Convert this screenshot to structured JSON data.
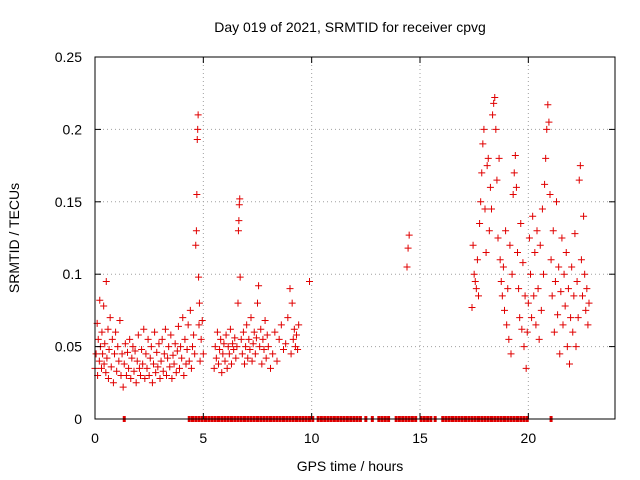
{
  "chart_data": {
    "type": "scatter",
    "title": "Day 019 of 2021, SRMTID for receiver cpvg",
    "xlabel": "GPS time / hours",
    "ylabel": "SRMTID / TECUs",
    "xlim": [
      0,
      24
    ],
    "ylim": [
      0,
      0.25
    ],
    "xticks": [
      0,
      5,
      10,
      15,
      20
    ],
    "xtick_labels": [
      "0",
      "5",
      "10",
      "15",
      "20"
    ],
    "yticks": [
      0,
      0.05,
      0.1,
      0.15,
      0.2,
      0.25
    ],
    "ytick_labels": [
      "0",
      "0.05",
      "0.1",
      "0.15",
      "0.2",
      "0.25"
    ],
    "grid": true,
    "marker": "plus",
    "color": "#e00000",
    "series": [
      {
        "name": "SRMTID",
        "points": [
          [
            0.0,
            0.035
          ],
          [
            0.05,
            0.045
          ],
          [
            0.1,
            0.066
          ],
          [
            0.12,
            0.03
          ],
          [
            0.15,
            0.055
          ],
          [
            0.2,
            0.04
          ],
          [
            0.22,
            0.082
          ],
          [
            0.25,
            0.05
          ],
          [
            0.3,
            0.035
          ],
          [
            0.32,
            0.06
          ],
          [
            0.35,
            0.045
          ],
          [
            0.4,
            0.078
          ],
          [
            0.42,
            0.038
          ],
          [
            0.45,
            0.052
          ],
          [
            0.5,
            0.032
          ],
          [
            0.52,
            0.095
          ],
          [
            0.55,
            0.042
          ],
          [
            0.6,
            0.062
          ],
          [
            0.62,
            0.028
          ],
          [
            0.65,
            0.048
          ],
          [
            0.7,
            0.07
          ],
          [
            0.75,
            0.036
          ],
          [
            0.8,
            0.055
          ],
          [
            0.85,
            0.025
          ],
          [
            0.9,
            0.045
          ],
          [
            0.95,
            0.06
          ],
          [
            1.0,
            0.033
          ],
          [
            1.05,
            0.05
          ],
          [
            1.1,
            0.04
          ],
          [
            1.15,
            0.068
          ],
          [
            1.2,
            0.03
          ],
          [
            1.25,
            0.045
          ],
          [
            1.3,
            0.022
          ],
          [
            1.35,
            0.038
          ],
          [
            1.4,
            0.052
          ],
          [
            1.45,
            0.03
          ],
          [
            1.5,
            0.046
          ],
          [
            1.55,
            0.035
          ],
          [
            1.6,
            0.055
          ],
          [
            1.65,
            0.028
          ],
          [
            1.7,
            0.042
          ],
          [
            1.75,
            0.05
          ],
          [
            1.8,
            0.033
          ],
          [
            1.85,
            0.047
          ],
          [
            1.9,
            0.025
          ],
          [
            1.95,
            0.04
          ],
          [
            2.0,
            0.058
          ],
          [
            2.05,
            0.035
          ],
          [
            2.1,
            0.03
          ],
          [
            2.15,
            0.048
          ],
          [
            2.2,
            0.038
          ],
          [
            2.25,
            0.062
          ],
          [
            2.3,
            0.028
          ],
          [
            2.35,
            0.045
          ],
          [
            2.4,
            0.035
          ],
          [
            2.45,
            0.055
          ],
          [
            2.5,
            0.03
          ],
          [
            2.55,
            0.042
          ],
          [
            2.6,
            0.05
          ],
          [
            2.65,
            0.025
          ],
          [
            2.7,
            0.038
          ],
          [
            2.75,
            0.06
          ],
          [
            2.8,
            0.032
          ],
          [
            2.85,
            0.046
          ],
          [
            2.9,
            0.036
          ],
          [
            2.95,
            0.052
          ],
          [
            3.0,
            0.028
          ],
          [
            3.05,
            0.04
          ],
          [
            3.1,
            0.055
          ],
          [
            3.15,
            0.033
          ],
          [
            3.2,
            0.045
          ],
          [
            3.25,
            0.062
          ],
          [
            3.3,
            0.03
          ],
          [
            3.35,
            0.042
          ],
          [
            3.4,
            0.05
          ],
          [
            3.45,
            0.036
          ],
          [
            3.5,
            0.058
          ],
          [
            3.55,
            0.028
          ],
          [
            3.6,
            0.044
          ],
          [
            3.65,
            0.038
          ],
          [
            3.7,
            0.052
          ],
          [
            3.75,
            0.032
          ],
          [
            3.8,
            0.047
          ],
          [
            3.85,
            0.064
          ],
          [
            3.9,
            0.035
          ],
          [
            3.95,
            0.05
          ],
          [
            4.0,
            0.042
          ],
          [
            4.05,
            0.07
          ],
          [
            4.1,
            0.03
          ],
          [
            4.15,
            0.055
          ],
          [
            4.2,
            0.038
          ],
          [
            4.25,
            0.048
          ],
          [
            4.3,
            0.065
          ],
          [
            4.35,
            0.04
          ],
          [
            4.4,
            0.075
          ],
          [
            4.45,
            0.035
          ],
          [
            4.5,
            0.05
          ],
          [
            4.55,
            0.058
          ],
          [
            4.6,
            0.045
          ],
          [
            4.65,
            0.12
          ],
          [
            4.68,
            0.13
          ],
          [
            4.7,
            0.155
          ],
          [
            4.72,
            0.193
          ],
          [
            4.74,
            0.2
          ],
          [
            4.76,
            0.21
          ],
          [
            4.78,
            0.098
          ],
          [
            4.8,
            0.065
          ],
          [
            4.82,
            0.08
          ],
          [
            4.85,
            0.04
          ],
          [
            4.9,
            0.055
          ],
          [
            4.95,
            0.068
          ],
          [
            5.0,
            0.045
          ],
          [
            5.5,
            0.035
          ],
          [
            5.55,
            0.05
          ],
          [
            5.6,
            0.042
          ],
          [
            5.65,
            0.06
          ],
          [
            5.7,
            0.038
          ],
          [
            5.75,
            0.048
          ],
          [
            5.8,
            0.055
          ],
          [
            5.85,
            0.032
          ],
          [
            5.9,
            0.045
          ],
          [
            5.95,
            0.052
          ],
          [
            6.0,
            0.04
          ],
          [
            6.05,
            0.058
          ],
          [
            6.1,
            0.035
          ],
          [
            6.15,
            0.05
          ],
          [
            6.2,
            0.045
          ],
          [
            6.25,
            0.062
          ],
          [
            6.3,
            0.038
          ],
          [
            6.35,
            0.052
          ],
          [
            6.4,
            0.048
          ],
          [
            6.45,
            0.056
          ],
          [
            6.5,
            0.042
          ],
          [
            6.55,
            0.05
          ],
          [
            6.6,
            0.08
          ],
          [
            6.62,
            0.13
          ],
          [
            6.64,
            0.137
          ],
          [
            6.66,
            0.148
          ],
          [
            6.68,
            0.152
          ],
          [
            6.7,
            0.098
          ],
          [
            6.75,
            0.055
          ],
          [
            6.8,
            0.045
          ],
          [
            6.85,
            0.06
          ],
          [
            6.9,
            0.038
          ],
          [
            6.95,
            0.05
          ],
          [
            7.0,
            0.065
          ],
          [
            7.05,
            0.042
          ],
          [
            7.1,
            0.055
          ],
          [
            7.15,
            0.048
          ],
          [
            7.2,
            0.07
          ],
          [
            7.25,
            0.04
          ],
          [
            7.3,
            0.052
          ],
          [
            7.35,
            0.06
          ],
          [
            7.4,
            0.045
          ],
          [
            7.45,
            0.056
          ],
          [
            7.5,
            0.08
          ],
          [
            7.55,
            0.092
          ],
          [
            7.6,
            0.05
          ],
          [
            7.65,
            0.062
          ],
          [
            7.7,
            0.038
          ],
          [
            7.75,
            0.055
          ],
          [
            7.8,
            0.048
          ],
          [
            7.85,
            0.068
          ],
          [
            7.9,
            0.042
          ],
          [
            7.95,
            0.058
          ],
          [
            8.0,
            0.05
          ],
          [
            8.1,
            0.035
          ],
          [
            8.2,
            0.045
          ],
          [
            8.3,
            0.06
          ],
          [
            8.4,
            0.04
          ],
          [
            8.5,
            0.055
          ],
          [
            8.6,
            0.065
          ],
          [
            8.7,
            0.048
          ],
          [
            8.8,
            0.052
          ],
          [
            8.9,
            0.07
          ],
          [
            9.0,
            0.09
          ],
          [
            9.05,
            0.045
          ],
          [
            9.1,
            0.08
          ],
          [
            9.15,
            0.055
          ],
          [
            9.2,
            0.062
          ],
          [
            9.25,
            0.05
          ],
          [
            9.3,
            0.058
          ],
          [
            9.35,
            0.048
          ],
          [
            9.4,
            0.065
          ],
          [
            9.9,
            0.095
          ],
          [
            14.4,
            0.105
          ],
          [
            14.45,
            0.118
          ],
          [
            14.5,
            0.127
          ],
          [
            17.4,
            0.077
          ],
          [
            17.45,
            0.12
          ],
          [
            17.5,
            0.1
          ],
          [
            17.55,
            0.095
          ],
          [
            17.6,
            0.09
          ],
          [
            17.65,
            0.11
          ],
          [
            17.7,
            0.085
          ],
          [
            17.75,
            0.135
          ],
          [
            17.8,
            0.15
          ],
          [
            17.85,
            0.17
          ],
          [
            17.9,
            0.19
          ],
          [
            17.95,
            0.2
          ],
          [
            18.0,
            0.145
          ],
          [
            18.05,
            0.115
          ],
          [
            18.1,
            0.175
          ],
          [
            18.15,
            0.18
          ],
          [
            18.2,
            0.13
          ],
          [
            18.25,
            0.16
          ],
          [
            18.3,
            0.145
          ],
          [
            18.35,
            0.21
          ],
          [
            18.4,
            0.218
          ],
          [
            18.45,
            0.222
          ],
          [
            18.5,
            0.2
          ],
          [
            18.55,
            0.165
          ],
          [
            18.6,
            0.125
          ],
          [
            18.65,
            0.18
          ],
          [
            18.7,
            0.11
          ],
          [
            18.75,
            0.095
          ],
          [
            18.8,
            0.085
          ],
          [
            18.85,
            0.105
          ],
          [
            18.9,
            0.075
          ],
          [
            18.95,
            0.13
          ],
          [
            19.0,
            0.065
          ],
          [
            19.05,
            0.09
          ],
          [
            19.1,
            0.055
          ],
          [
            19.15,
            0.12
          ],
          [
            19.2,
            0.045
          ],
          [
            19.25,
            0.1
          ],
          [
            19.3,
            0.155
          ],
          [
            19.35,
            0.17
          ],
          [
            19.4,
            0.182
          ],
          [
            19.45,
            0.16
          ],
          [
            19.5,
            0.115
          ],
          [
            19.55,
            0.09
          ],
          [
            19.6,
            0.07
          ],
          [
            19.65,
            0.135
          ],
          [
            19.7,
            0.062
          ],
          [
            19.75,
            0.108
          ],
          [
            19.8,
            0.05
          ],
          [
            19.85,
            0.085
          ],
          [
            19.9,
            0.035
          ],
          [
            19.95,
            0.06
          ],
          [
            20.0,
            0.08
          ],
          [
            20.05,
            0.125
          ],
          [
            20.1,
            0.1
          ],
          [
            20.15,
            0.07
          ],
          [
            20.2,
            0.14
          ],
          [
            20.25,
            0.085
          ],
          [
            20.3,
            0.115
          ],
          [
            20.35,
            0.065
          ],
          [
            20.4,
            0.13
          ],
          [
            20.45,
            0.09
          ],
          [
            20.5,
            0.055
          ],
          [
            20.55,
            0.12
          ],
          [
            20.6,
            0.075
          ],
          [
            20.65,
            0.145
          ],
          [
            20.7,
            0.1
          ],
          [
            20.75,
            0.162
          ],
          [
            20.8,
            0.18
          ],
          [
            20.85,
            0.2
          ],
          [
            20.9,
            0.217
          ],
          [
            20.95,
            0.205
          ],
          [
            21.0,
            0.155
          ],
          [
            21.05,
            0.11
          ],
          [
            21.1,
            0.085
          ],
          [
            21.15,
            0.13
          ],
          [
            21.2,
            0.06
          ],
          [
            21.25,
            0.095
          ],
          [
            21.3,
            0.15
          ],
          [
            21.35,
            0.072
          ],
          [
            21.4,
            0.105
          ],
          [
            21.45,
            0.045
          ],
          [
            21.5,
            0.088
          ],
          [
            21.55,
            0.125
          ],
          [
            21.6,
            0.065
          ],
          [
            21.65,
            0.1
          ],
          [
            21.7,
            0.078
          ],
          [
            21.75,
            0.115
          ],
          [
            21.8,
            0.05
          ],
          [
            21.85,
            0.09
          ],
          [
            21.9,
            0.038
          ],
          [
            21.95,
            0.07
          ],
          [
            22.0,
            0.105
          ],
          [
            22.05,
            0.06
          ],
          [
            22.1,
            0.085
          ],
          [
            22.15,
            0.128
          ],
          [
            22.2,
            0.05
          ],
          [
            22.25,
            0.095
          ],
          [
            22.3,
            0.07
          ],
          [
            22.35,
            0.165
          ],
          [
            22.4,
            0.175
          ],
          [
            22.45,
            0.11
          ],
          [
            22.5,
            0.085
          ],
          [
            22.55,
            0.14
          ],
          [
            22.6,
            0.1
          ],
          [
            22.65,
            0.075
          ],
          [
            22.7,
            0.09
          ],
          [
            22.75,
            0.065
          ],
          [
            22.8,
            0.08
          ]
        ]
      }
    ],
    "zero_points_x": [
      1.35,
      4.35,
      4.5,
      4.65,
      4.8,
      4.95,
      5.1,
      5.25,
      5.4,
      5.55,
      5.7,
      5.85,
      6.0,
      6.15,
      6.3,
      6.45,
      6.6,
      6.75,
      6.9,
      7.05,
      7.2,
      7.35,
      7.5,
      7.65,
      7.8,
      7.95,
      8.1,
      8.25,
      8.4,
      8.55,
      8.7,
      8.85,
      9.0,
      9.15,
      9.3,
      9.45,
      9.6,
      9.75,
      9.9,
      10.05,
      10.3,
      10.45,
      10.6,
      10.75,
      10.9,
      11.05,
      11.2,
      11.35,
      11.5,
      11.65,
      11.8,
      11.95,
      12.1,
      12.25,
      12.5,
      12.8,
      13.1,
      13.25,
      13.4,
      13.55,
      13.9,
      14.05,
      14.2,
      14.35,
      14.5,
      14.65,
      14.8,
      15.05,
      15.2,
      15.35,
      15.5,
      15.7,
      16.05,
      16.2,
      16.35,
      16.5,
      16.65,
      16.8,
      16.95,
      17.1,
      17.25,
      17.4,
      17.55,
      17.7,
      17.85,
      18.0,
      18.15,
      18.3,
      18.45,
      18.6,
      18.75,
      18.9,
      19.05,
      19.2,
      19.35,
      19.5,
      19.65,
      19.8,
      19.95,
      21.05
    ]
  }
}
